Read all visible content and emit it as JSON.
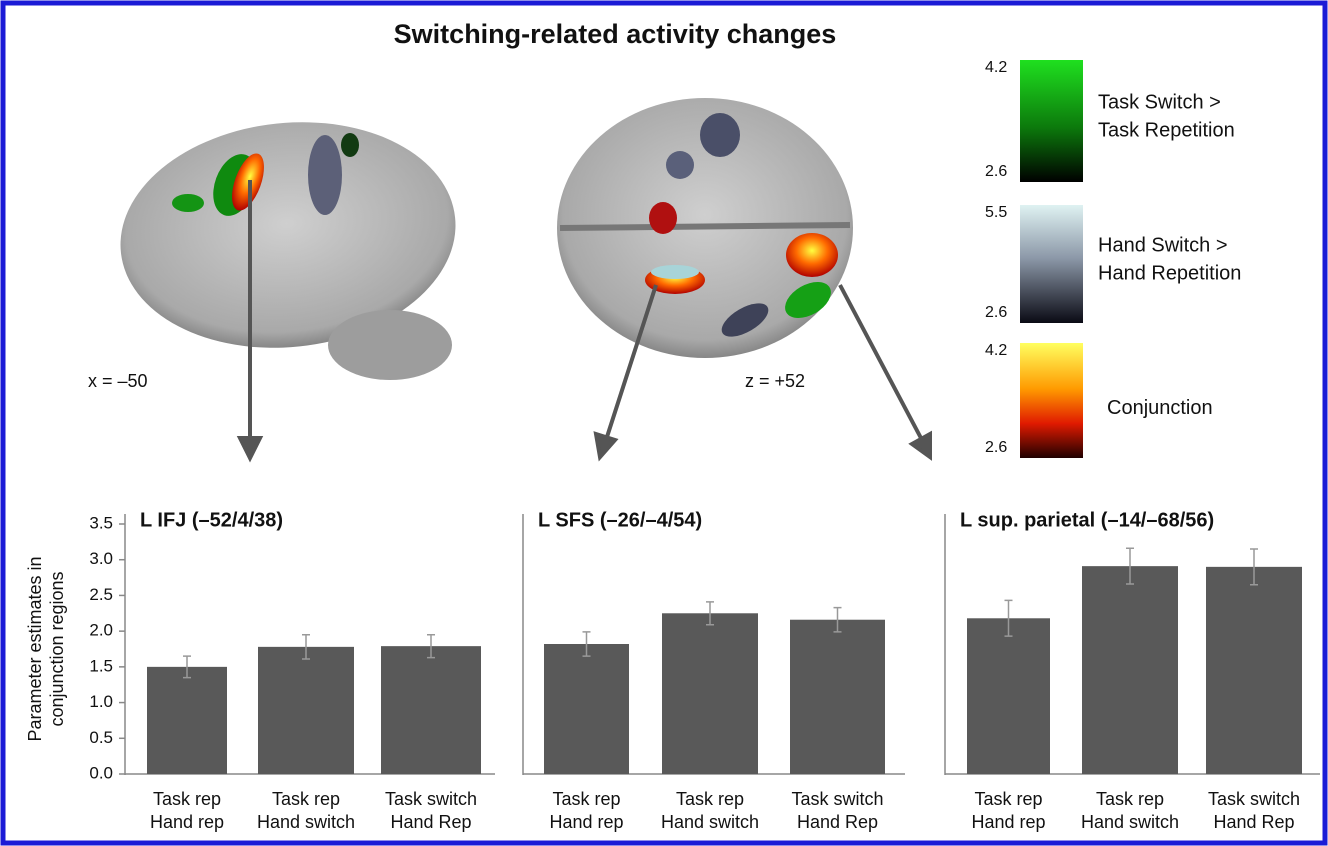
{
  "title": "Switching-related activity changes",
  "slice_labels": [
    "x = –50",
    "z = +52"
  ],
  "colorbars": [
    {
      "max": 4.2,
      "min": 2.6,
      "label": [
        "Task Switch >",
        "Task Repetition"
      ]
    },
    {
      "max": 5.5,
      "min": 2.6,
      "label": [
        "Hand Switch >",
        "Hand Repetition"
      ]
    },
    {
      "max": 4.2,
      "min": 2.6,
      "label": [
        "Conjunction"
      ]
    }
  ],
  "chart_data": [
    {
      "type": "bar",
      "title": "L IFJ (–52/4/38)",
      "ylabel": [
        "Parameter estimates in",
        "conjunction regions"
      ],
      "categories": [
        [
          "Task rep",
          "Hand rep"
        ],
        [
          "Task rep",
          "Hand switch"
        ],
        [
          "Task switch",
          "Hand Rep"
        ]
      ],
      "values": [
        1.5,
        1.78,
        1.79
      ],
      "errors": [
        0.15,
        0.17,
        0.16
      ],
      "color": "#595959",
      "ylim": [
        0,
        3.5
      ],
      "yticks": [
        {
          "value": 0,
          "label": "0.0"
        },
        0.5,
        {
          "value": 1,
          "label": "1.0"
        },
        1.5,
        {
          "value": 2,
          "label": "2.0"
        },
        2.5,
        {
          "value": 3,
          "label": "3.0"
        },
        3.5
      ]
    },
    {
      "type": "bar",
      "title": "L SFS (–26/–4/54)",
      "categories": [
        [
          "Task rep",
          "Hand rep"
        ],
        [
          "Task rep",
          "Hand switch"
        ],
        [
          "Task switch",
          "Hand Rep"
        ]
      ],
      "values": [
        1.82,
        2.25,
        2.16
      ],
      "errors": [
        0.17,
        0.16,
        0.17
      ],
      "color": "#595959",
      "ylim": [
        0,
        3.5
      ]
    },
    {
      "type": "bar",
      "title": "L sup. parietal (–14/–68/56)",
      "categories": [
        [
          "Task rep",
          "Hand rep"
        ],
        [
          "Task rep",
          "Hand switch"
        ],
        [
          "Task switch",
          "Hand Rep"
        ]
      ],
      "values": [
        2.18,
        2.91,
        2.9
      ],
      "errors": [
        0.25,
        0.25,
        0.25
      ],
      "color": "#595959",
      "ylim": [
        0,
        3.5
      ]
    }
  ]
}
